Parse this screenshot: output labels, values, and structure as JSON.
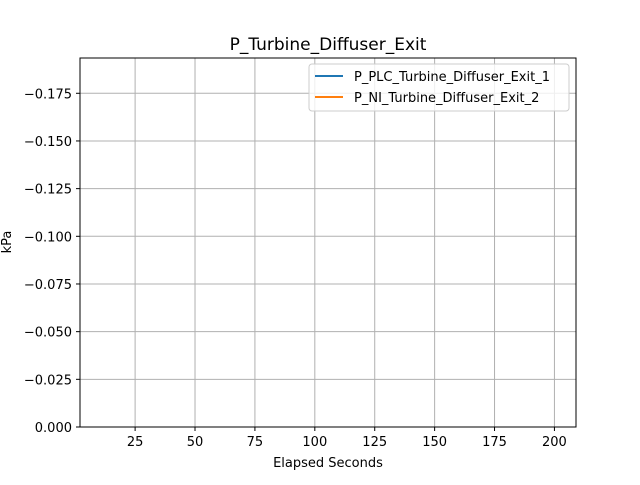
{
  "chart_data": {
    "type": "line",
    "title": "P_Turbine_Diffuser_Exit",
    "xlabel": "Elapsed Seconds",
    "ylabel": "kPa",
    "xlim": [
      2,
      209
    ],
    "ylim": [
      0.0,
      -0.1935
    ],
    "x_ticks": [
      25,
      50,
      75,
      100,
      125,
      150,
      175,
      200
    ],
    "x_tick_labels": [
      "25",
      "50",
      "75",
      "100",
      "125",
      "150",
      "175",
      "200"
    ],
    "y_ticks": [
      0.0,
      -0.025,
      -0.05,
      -0.075,
      -0.1,
      -0.125,
      -0.15,
      -0.175
    ],
    "y_tick_labels": [
      "0.000",
      "−0.025",
      "−0.050",
      "−0.075",
      "−0.100",
      "−0.125",
      "−0.150",
      "−0.175"
    ],
    "grid": true,
    "legend_position": "top-right",
    "series": [
      {
        "name": "P_PLC_Turbine_Diffuser_Exit_1",
        "color": "#1f77b4",
        "x": [],
        "y": []
      },
      {
        "name": "P_NI_Turbine_Diffuser_Exit_2",
        "color": "#ff7f0e",
        "x": [],
        "y": []
      }
    ]
  }
}
